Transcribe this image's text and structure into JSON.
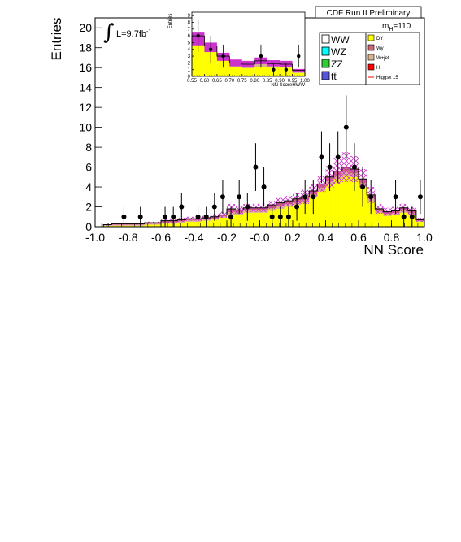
{
  "header": {
    "run_label": "CDF Run II Preliminary",
    "lumi_label": "L=9.7fb",
    "lumi_sup": "-1",
    "mass_label": "m",
    "mass_sub": "H",
    "mass_value": "=110"
  },
  "colors": {
    "dy": "#ffff00",
    "wgamma": "#cc6677",
    "wjet": "#d9b38c",
    "higgs": "#ff0000",
    "ww": "#ffffff",
    "wz": "#00ffff",
    "zz": "#33cc33",
    "ttbar": "#5555dd",
    "uncertainty_band": "#cc33cc"
  },
  "legend": {
    "left": [
      {
        "key": "ww",
        "label": "WW"
      },
      {
        "key": "wz",
        "label": "WZ"
      },
      {
        "key": "zz",
        "label": "ZZ"
      },
      {
        "key": "ttbar",
        "label": "tt̄"
      }
    ],
    "right": [
      {
        "key": "dy",
        "label": "DY"
      },
      {
        "key": "wgamma",
        "label": "Wγ"
      },
      {
        "key": "wjet",
        "label": "W+jet"
      },
      {
        "key": "higgs",
        "label": "H"
      },
      {
        "key": "higgs_line",
        "label": "Higgsx 15"
      }
    ]
  },
  "chart_data": [
    {
      "type": "bar",
      "ylabel": "Entries",
      "xlabel": "NN Score",
      "xlim": [
        -1.0,
        1.0
      ],
      "ylim": [
        0,
        21
      ],
      "x_ticks": [
        "-1.0",
        "-0.8",
        "-0.6",
        "-0.4",
        "-0.2",
        "-0.0",
        "0.2",
        "0.4",
        "0.6",
        "0.8",
        "1.0"
      ],
      "x_tick_values": [
        -1.0,
        -0.8,
        -0.6,
        -0.4,
        -0.2,
        0.0,
        0.2,
        0.4,
        0.6,
        0.8,
        1.0
      ],
      "y_ticks": [
        "0",
        "2",
        "4",
        "6",
        "8",
        "10",
        "12",
        "14",
        "16",
        "18",
        "20"
      ],
      "y_tick_values": [
        0,
        2,
        4,
        6,
        8,
        10,
        12,
        14,
        16,
        18,
        20
      ],
      "bin_edges": [
        -1.0,
        -0.95,
        -0.9,
        -0.85,
        -0.8,
        -0.75,
        -0.7,
        -0.65,
        -0.6,
        -0.55,
        -0.5,
        -0.45,
        -0.4,
        -0.35,
        -0.3,
        -0.25,
        -0.2,
        -0.15,
        -0.1,
        -0.05,
        0.0,
        0.05,
        0.1,
        0.15,
        0.2,
        0.25,
        0.3,
        0.35,
        0.4,
        0.45,
        0.5,
        0.55,
        0.6,
        0.65,
        0.7,
        0.75,
        0.8,
        0.85,
        0.9,
        0.95,
        1.0
      ],
      "background_total": [
        0.0,
        0.2,
        0.3,
        0.3,
        0.3,
        0.3,
        0.4,
        0.4,
        0.6,
        0.6,
        0.7,
        0.8,
        0.8,
        0.9,
        1.0,
        1.2,
        1.8,
        1.7,
        1.9,
        1.9,
        1.9,
        2.2,
        2.4,
        2.6,
        2.8,
        3.0,
        3.6,
        4.3,
        5.0,
        5.6,
        6.0,
        5.8,
        4.8,
        3.2,
        1.8,
        1.5,
        1.6,
        1.9,
        1.6,
        0.7
      ],
      "dy": [
        0.0,
        0.1,
        0.1,
        0.1,
        0.1,
        0.1,
        0.2,
        0.2,
        0.3,
        0.3,
        0.4,
        0.5,
        0.5,
        0.6,
        0.7,
        0.9,
        1.2,
        1.2,
        1.4,
        1.4,
        1.4,
        1.6,
        1.8,
        2.0,
        2.2,
        2.4,
        3.0,
        3.6,
        4.2,
        4.8,
        5.1,
        5.0,
        4.0,
        2.6,
        1.4,
        1.1,
        1.2,
        1.4,
        1.2,
        0.5
      ],
      "uncertainty_up": [
        0.0,
        0.3,
        0.4,
        0.4,
        0.4,
        0.4,
        0.5,
        0.5,
        0.8,
        0.8,
        0.9,
        1.0,
        1.0,
        1.1,
        1.3,
        1.5,
        2.3,
        2.1,
        2.3,
        2.3,
        2.3,
        2.6,
        2.9,
        3.1,
        3.4,
        3.7,
        4.3,
        5.1,
        6.1,
        6.9,
        7.5,
        7.1,
        5.8,
        4.0,
        2.3,
        1.9,
        2.0,
        2.3,
        2.0,
        0.9
      ],
      "uncertainty_down": [
        0.0,
        0.1,
        0.2,
        0.2,
        0.2,
        0.2,
        0.3,
        0.3,
        0.4,
        0.4,
        0.5,
        0.6,
        0.6,
        0.7,
        0.7,
        0.9,
        1.3,
        1.3,
        1.5,
        1.5,
        1.5,
        1.8,
        1.9,
        2.1,
        2.2,
        2.3,
        2.9,
        3.5,
        3.9,
        4.3,
        4.5,
        4.5,
        3.8,
        2.4,
        1.3,
        1.1,
        1.2,
        1.5,
        1.2,
        0.5
      ],
      "data_points": [
        {
          "x": -0.825,
          "y": 1,
          "err": 1.0
        },
        {
          "x": -0.725,
          "y": 1,
          "err": 1.0
        },
        {
          "x": -0.575,
          "y": 1,
          "err": 1.0
        },
        {
          "x": -0.525,
          "y": 1,
          "err": 1.0
        },
        {
          "x": -0.475,
          "y": 2,
          "err": 1.4
        },
        {
          "x": -0.375,
          "y": 1,
          "err": 1.0
        },
        {
          "x": -0.325,
          "y": 1,
          "err": 1.0
        },
        {
          "x": -0.275,
          "y": 2,
          "err": 1.4
        },
        {
          "x": -0.225,
          "y": 3,
          "err": 1.7
        },
        {
          "x": -0.175,
          "y": 1,
          "err": 1.0
        },
        {
          "x": -0.125,
          "y": 3,
          "err": 1.7
        },
        {
          "x": -0.075,
          "y": 2,
          "err": 1.4
        },
        {
          "x": -0.025,
          "y": 6,
          "err": 2.4
        },
        {
          "x": 0.025,
          "y": 4,
          "err": 2.0
        },
        {
          "x": 0.075,
          "y": 1,
          "err": 1.0
        },
        {
          "x": 0.125,
          "y": 1,
          "err": 1.0
        },
        {
          "x": 0.175,
          "y": 1,
          "err": 1.0
        },
        {
          "x": 0.225,
          "y": 2,
          "err": 1.4
        },
        {
          "x": 0.275,
          "y": 3,
          "err": 1.7
        },
        {
          "x": 0.325,
          "y": 3,
          "err": 1.7
        },
        {
          "x": 0.375,
          "y": 7,
          "err": 2.6
        },
        {
          "x": 0.425,
          "y": 6,
          "err": 2.4
        },
        {
          "x": 0.475,
          "y": 7,
          "err": 2.6
        },
        {
          "x": 0.525,
          "y": 10,
          "err": 3.2
        },
        {
          "x": 0.575,
          "y": 6,
          "err": 2.4
        },
        {
          "x": 0.625,
          "y": 4,
          "err": 2.0
        },
        {
          "x": 0.675,
          "y": 3,
          "err": 1.7
        },
        {
          "x": 0.825,
          "y": 3,
          "err": 1.7
        },
        {
          "x": 0.875,
          "y": 1,
          "err": 1.0
        },
        {
          "x": 0.925,
          "y": 1,
          "err": 1.0
        },
        {
          "x": 0.975,
          "y": 3,
          "err": 1.7
        }
      ]
    },
    {
      "type": "bar",
      "ylabel": "Entries",
      "xlabel": "NN ScoreHWW",
      "xlim": [
        0.55,
        1.0
      ],
      "ylim": [
        0,
        9.5
      ],
      "x_ticks": [
        "0.55",
        "0.60",
        "0.65",
        "0.70",
        "0.75",
        "0.80",
        "0.85",
        "0.90",
        "0.95",
        "1.00"
      ],
      "x_tick_values": [
        0.55,
        0.6,
        0.65,
        0.7,
        0.75,
        0.8,
        0.85,
        0.9,
        0.95,
        1.0
      ],
      "y_ticks": [
        "0",
        "1",
        "2",
        "3",
        "4",
        "5",
        "6",
        "7",
        "8",
        "9"
      ],
      "y_tick_values": [
        0,
        1,
        2,
        3,
        4,
        5,
        6,
        7,
        8,
        9
      ],
      "bin_edges": [
        0.55,
        0.6,
        0.65,
        0.7,
        0.75,
        0.8,
        0.85,
        0.9,
        0.95,
        1.0
      ],
      "background_total": [
        6.0,
        4.5,
        3.0,
        2.0,
        1.8,
        2.3,
        1.9,
        1.8,
        0.9
      ],
      "dy": [
        5.0,
        4.0,
        2.6,
        1.4,
        1.2,
        1.4,
        1.3,
        1.3,
        0.5
      ],
      "uncertainty_up": [
        6.6,
        5.0,
        3.5,
        2.5,
        2.3,
        2.8,
        2.4,
        2.3,
        1.1
      ],
      "uncertainty_down": [
        4.6,
        3.6,
        2.3,
        1.5,
        1.4,
        1.8,
        1.5,
        1.4,
        0.6
      ],
      "data_points": [
        {
          "x": 0.575,
          "y": 6,
          "err": 2.4
        },
        {
          "x": 0.625,
          "y": 4,
          "err": 2.0
        },
        {
          "x": 0.675,
          "y": 3,
          "err": 1.7
        },
        {
          "x": 0.825,
          "y": 3,
          "err": 1.7
        },
        {
          "x": 0.875,
          "y": 1,
          "err": 1.0
        },
        {
          "x": 0.925,
          "y": 1,
          "err": 1.0
        },
        {
          "x": 0.975,
          "y": 3,
          "err": 1.7
        }
      ]
    }
  ]
}
